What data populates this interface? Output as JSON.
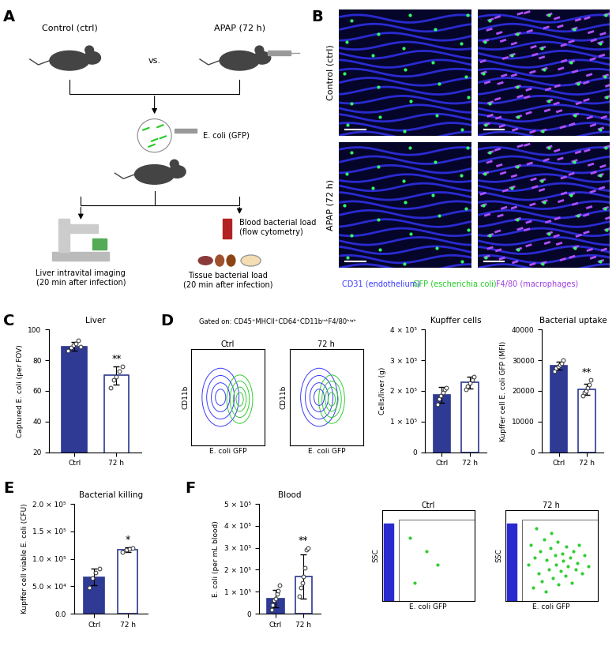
{
  "panel_labels": [
    "A",
    "B",
    "C",
    "D",
    "E",
    "F"
  ],
  "schematic": {
    "groups": [
      "Control (ctrl)",
      "APAP (72 h)"
    ],
    "versus": "vs.",
    "injection": "E. coli (GFP)",
    "readouts": [
      "Liver intravital imaging\n(20 min after infection)",
      "Blood bacterial load\n(flow cytometry)",
      "Tissue bacterial load\n(20 min after infection)"
    ]
  },
  "images": {
    "rows": [
      "Control (ctrl)",
      "APAP (72 h)"
    ],
    "legend": [
      {
        "text": "CD31 (endothelium)",
        "color": "#3a3aff"
      },
      {
        "text": "GFP (escherichia coli)",
        "color": "#22cc22"
      },
      {
        "text": "F4/80 (macrophages)",
        "color": "#a040e0"
      }
    ]
  },
  "flow_cytometry": {
    "gating": "Gated on: CD45⁺MHCII⁺CD64⁺CD11bⁱⁿᵗF4/80ʰⁱᵍʰ",
    "samples": [
      "Ctrl",
      "72 h"
    ],
    "xlabel": "E. coli GFP",
    "ylabel": "CD11b"
  },
  "chart_data": [
    {
      "type": "bar",
      "title": "Liver",
      "ylabel": "Captured E. coli (per FOV)",
      "categories": [
        "Ctrl",
        "72 h"
      ],
      "values": [
        89,
        70
      ],
      "error": [
        3,
        6
      ],
      "points": [
        [
          86,
          88,
          90,
          91,
          93,
          89
        ],
        [
          62,
          67,
          69,
          73,
          76
        ]
      ],
      "significance": "**",
      "ylim": [
        20,
        100
      ],
      "yticks": [
        20,
        40,
        60,
        80,
        100
      ],
      "colors": [
        "#2e3a94",
        "#ffffff"
      ]
    },
    {
      "type": "bar",
      "title": "Kupffer cells",
      "ylabel": "Cells/liver (g)",
      "categories": [
        "Ctrl",
        "72 h"
      ],
      "values": [
        187000,
        227000
      ],
      "error": [
        25000,
        20000
      ],
      "points": [
        [
          155000,
          175000,
          185000,
          195000,
          205000,
          210000
        ],
        [
          205000,
          215000,
          225000,
          235000,
          245000
        ]
      ],
      "ylim": [
        0,
        400000
      ],
      "yticks": [
        0,
        {
          "value": 100000,
          "label": "1 × 10⁵"
        },
        {
          "value": 200000,
          "label": "2 × 10⁵"
        },
        {
          "value": 300000,
          "label": "3 × 10⁵"
        },
        {
          "value": 400000,
          "label": "4 × 10⁵"
        }
      ],
      "colors": [
        "#2e3a94",
        "#ffffff"
      ]
    },
    {
      "type": "bar",
      "title": "Bacterial uptake",
      "ylabel": "Kupffer cell E. coli GFP (MFI)",
      "categories": [
        "Ctrl",
        "72 h"
      ],
      "values": [
        28200,
        20400
      ],
      "error": [
        1200,
        1800
      ],
      "points": [
        [
          26500,
          27500,
          28000,
          28500,
          29000,
          30000
        ],
        [
          18500,
          19500,
          20000,
          21000,
          22000,
          23500
        ]
      ],
      "significance": "**",
      "ylim": [
        0,
        40000
      ],
      "yticks": [
        0,
        10000,
        20000,
        30000,
        40000
      ],
      "colors": [
        "#2e3a94",
        "#ffffff"
      ]
    },
    {
      "type": "bar",
      "title": "Bacterial killing",
      "ylabel": "Kupffer cell viable E. coli (CFU)",
      "categories": [
        "Ctrl",
        "72 h"
      ],
      "values": [
        67000,
        117000
      ],
      "error": [
        15000,
        4000
      ],
      "points": [
        [
          48000,
          65000,
          75000,
          82000
        ],
        [
          113000,
          116000,
          118000,
          120000
        ]
      ],
      "significance": "*",
      "ylim": [
        0,
        200000
      ],
      "yticks": [
        {
          "value": 0,
          "label": "0.0"
        },
        {
          "value": 50000,
          "label": "5.0 × 10⁴"
        },
        {
          "value": 100000,
          "label": "1.0 × 10⁵"
        },
        {
          "value": 150000,
          "label": "1.5 × 10⁵"
        },
        {
          "value": 200000,
          "label": "2.0 × 10⁵"
        }
      ],
      "colors": [
        "#2e3a94",
        "#ffffff"
      ]
    },
    {
      "type": "bar",
      "title": "Blood",
      "ylabel": "E. coli (per mL blood)",
      "categories": [
        "Ctrl",
        "72 h"
      ],
      "values": [
        70000,
        170000
      ],
      "error": [
        40000,
        100000
      ],
      "points": [
        [
          20000,
          40000,
          60000,
          70000,
          90000,
          105000,
          130000
        ],
        [
          80000,
          120000,
          140000,
          170000,
          210000,
          290000,
          300000
        ]
      ],
      "significance": "**",
      "ylim": [
        0,
        500000
      ],
      "yticks": [
        0,
        {
          "value": 100000,
          "label": "1 × 10⁵"
        },
        {
          "value": 200000,
          "label": "2 × 10⁵"
        },
        {
          "value": 300000,
          "label": "3 × 10⁵"
        },
        {
          "value": 400000,
          "label": "4 × 10⁵"
        },
        {
          "value": 500000,
          "label": "5 × 10⁵"
        }
      ],
      "colors": [
        "#2e3a94",
        "#ffffff"
      ]
    },
    {
      "type": "scatter",
      "title": "Ctrl",
      "xlabel": "E. coli GFP",
      "ylabel": "SSC",
      "xlim": [
        0,
        100
      ],
      "ylim": [
        0,
        100
      ],
      "tick_labels": false,
      "color": "#33cc33",
      "points": [
        [
          35,
          20
        ],
        [
          48,
          55
        ],
        [
          60,
          40
        ],
        [
          30,
          70
        ]
      ],
      "gate": {
        "x": [
          18,
          100
        ],
        "y": [
          0,
          90
        ]
      },
      "negative_population": {
        "x": [
          2,
          12
        ],
        "y": [
          0,
          85
        ]
      }
    },
    {
      "type": "scatter",
      "title": "72 h",
      "xlabel": "E. coli GFP",
      "ylabel": "SSC",
      "xlim": [
        0,
        100
      ],
      "ylim": [
        0,
        100
      ],
      "tick_labels": false,
      "color": "#33cc33",
      "points": [
        [
          25,
          40
        ],
        [
          28,
          62
        ],
        [
          30,
          15
        ],
        [
          32,
          48
        ],
        [
          34,
          80
        ],
        [
          36,
          30
        ],
        [
          38,
          55
        ],
        [
          40,
          22
        ],
        [
          42,
          68
        ],
        [
          44,
          10
        ],
        [
          45,
          45
        ],
        [
          47,
          35
        ],
        [
          49,
          58
        ],
        [
          50,
          75
        ],
        [
          52,
          25
        ],
        [
          54,
          50
        ],
        [
          55,
          40
        ],
        [
          57,
          65
        ],
        [
          58,
          18
        ],
        [
          60,
          33
        ],
        [
          62,
          52
        ],
        [
          63,
          44
        ],
        [
          65,
          28
        ],
        [
          66,
          60
        ],
        [
          68,
          38
        ],
        [
          70,
          48
        ],
        [
          72,
          20
        ],
        [
          74,
          55
        ],
        [
          76,
          35
        ],
        [
          78,
          42
        ],
        [
          80,
          62
        ],
        [
          83,
          30
        ],
        [
          86,
          50
        ],
        [
          90,
          38
        ]
      ],
      "gate": {
        "x": [
          18,
          100
        ],
        "y": [
          0,
          90
        ]
      },
      "negative_population": {
        "x": [
          2,
          12
        ],
        "y": [
          0,
          85
        ]
      }
    }
  ]
}
